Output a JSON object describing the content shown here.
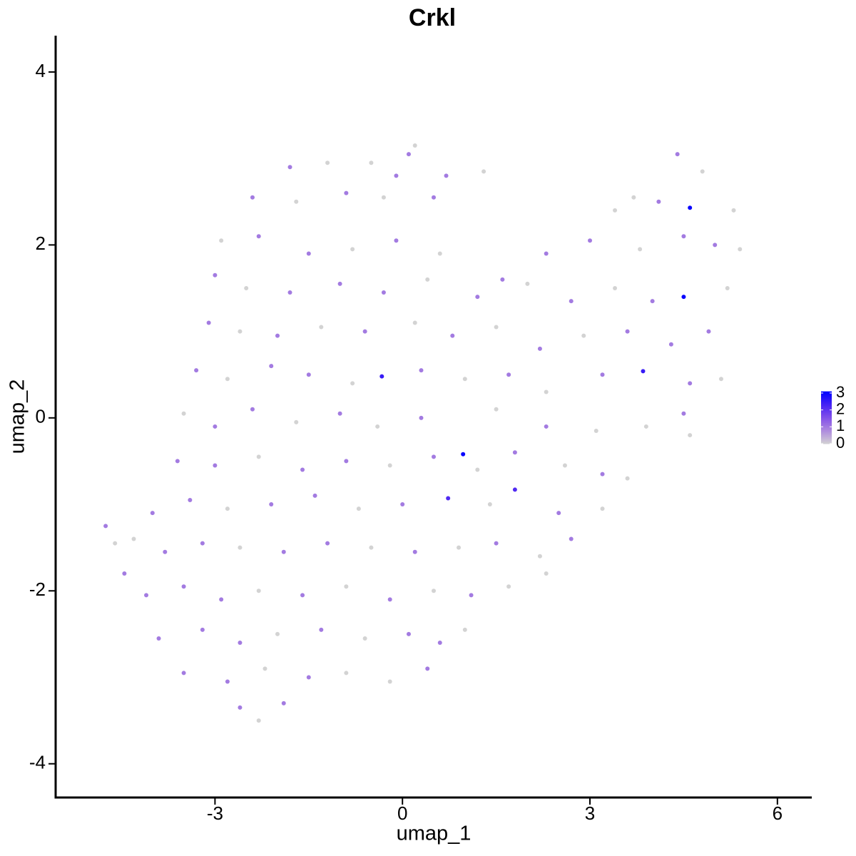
{
  "chart_data": {
    "type": "scatter",
    "title": "Crkl",
    "x_label": "umap_1",
    "y_label": "umap_2",
    "xlim": [
      -5.55,
      6.55
    ],
    "ylim": [
      -4.39,
      4.42
    ],
    "xticks": [
      -3,
      0,
      3,
      6
    ],
    "yticks": [
      -4,
      -2,
      0,
      2,
      4
    ],
    "low_color": "#d3d3d3",
    "high_color": "#0000ff",
    "legend_lim": [
      0,
      3.1
    ],
    "legend_ticks": [
      0,
      1,
      2,
      3
    ],
    "grid": false,
    "x": [
      -1.8,
      -1.2,
      -0.5,
      0.1,
      0.2,
      0.7,
      -0.1,
      4.4,
      4.8,
      -2.4,
      -1.7,
      -0.9,
      -0.3,
      0.5,
      1.3,
      3.4,
      4.1,
      4.6,
      5.3,
      3.7,
      -2.9,
      -2.3,
      -1.5,
      -0.8,
      -0.1,
      0.6,
      1.6,
      2.3,
      3.0,
      3.8,
      4.5,
      5.0,
      5.4,
      -3.0,
      -2.5,
      -1.8,
      -1.0,
      -0.3,
      0.4,
      1.2,
      2.0,
      2.7,
      3.4,
      4.0,
      4.5,
      5.2,
      -3.1,
      -2.6,
      -2.0,
      -1.3,
      -0.6,
      0.2,
      0.8,
      1.5,
      2.2,
      2.9,
      3.6,
      4.3,
      4.9,
      -3.3,
      -2.8,
      -2.1,
      -1.5,
      -0.8,
      -0.33,
      0.3,
      1.0,
      1.7,
      2.3,
      3.2,
      3.85,
      4.6,
      5.1,
      -3.5,
      -3.0,
      -2.4,
      -1.7,
      -1.0,
      -0.4,
      0.3,
      0.97,
      1.5,
      2.3,
      3.1,
      3.9,
      4.5,
      4.6,
      -3.6,
      -3.0,
      -2.3,
      -1.6,
      -0.9,
      -0.2,
      0.5,
      1.2,
      1.8,
      2.6,
      3.2,
      3.6,
      -4.0,
      -3.4,
      -2.8,
      -2.1,
      -1.4,
      -0.7,
      0.0,
      0.73,
      1.4,
      1.8,
      2.5,
      3.2,
      -4.3,
      -3.8,
      -3.2,
      -2.6,
      -1.9,
      -1.2,
      -0.5,
      0.2,
      0.9,
      1.5,
      2.2,
      2.7,
      -4.1,
      -3.5,
      -2.9,
      -2.3,
      -1.6,
      -0.9,
      -0.2,
      0.5,
      1.1,
      1.7,
      2.3,
      -3.9,
      -3.2,
      -2.6,
      -2.0,
      -1.3,
      -0.6,
      0.1,
      0.6,
      1.0,
      -3.5,
      -2.8,
      -2.2,
      -1.5,
      -0.9,
      -0.2,
      0.4,
      -2.6,
      -2.3,
      -1.9,
      -4.75,
      -4.6,
      -4.45
    ],
    "y": [
      2.9,
      2.95,
      2.95,
      3.05,
      3.15,
      2.8,
      2.8,
      3.05,
      2.85,
      2.55,
      2.5,
      2.6,
      2.55,
      2.55,
      2.85,
      2.4,
      2.5,
      2.43,
      2.4,
      2.55,
      2.05,
      2.1,
      1.9,
      1.95,
      2.05,
      1.9,
      1.6,
      1.9,
      2.05,
      1.95,
      2.1,
      2.0,
      1.95,
      1.65,
      1.5,
      1.45,
      1.55,
      1.45,
      1.6,
      1.4,
      1.55,
      1.35,
      1.5,
      1.35,
      1.4,
      1.5,
      1.1,
      1.0,
      0.95,
      1.05,
      1.0,
      1.1,
      0.95,
      1.05,
      0.8,
      0.95,
      1.0,
      0.85,
      1.0,
      0.55,
      0.45,
      0.6,
      0.5,
      0.4,
      0.48,
      0.55,
      0.45,
      0.5,
      0.3,
      0.5,
      0.54,
      0.4,
      0.45,
      0.05,
      -0.1,
      0.1,
      -0.05,
      0.05,
      -0.1,
      0.0,
      -0.42,
      0.1,
      -0.1,
      -0.15,
      -0.1,
      0.05,
      -0.2,
      -0.5,
      -0.55,
      -0.45,
      -0.6,
      -0.5,
      -0.55,
      -0.45,
      -0.6,
      -0.4,
      -0.55,
      -0.65,
      -0.7,
      -1.1,
      -0.95,
      -1.05,
      -1.0,
      -0.9,
      -1.05,
      -1.0,
      -0.93,
      -1.0,
      -0.83,
      -1.1,
      -1.05,
      -1.4,
      -1.55,
      -1.45,
      -1.5,
      -1.55,
      -1.45,
      -1.5,
      -1.55,
      -1.5,
      -1.45,
      -1.6,
      -1.4,
      -2.05,
      -1.95,
      -2.1,
      -2.0,
      -2.05,
      -1.95,
      -2.1,
      -2.0,
      -2.05,
      -1.95,
      -1.8,
      -2.55,
      -2.45,
      -2.6,
      -2.5,
      -2.45,
      -2.55,
      -2.5,
      -2.6,
      -2.45,
      -2.95,
      -3.05,
      -2.9,
      -3.0,
      -2.95,
      -3.05,
      -2.9,
      -3.35,
      -3.5,
      -3.3,
      -1.25,
      -1.45,
      -1.8
    ],
    "values": [
      1,
      0,
      0,
      1,
      0,
      1,
      1,
      1,
      0,
      1,
      0,
      1,
      0,
      1,
      0,
      0,
      1,
      3,
      0,
      0,
      0,
      1,
      1,
      0,
      1,
      0,
      1,
      1,
      1,
      0,
      1,
      1,
      0,
      1,
      0,
      1,
      1,
      1,
      0,
      1,
      0,
      1,
      0,
      1,
      3,
      0,
      1,
      0,
      1,
      0,
      1,
      0,
      1,
      0,
      1,
      0,
      1,
      1,
      1,
      1,
      0,
      1,
      1,
      0,
      2.5,
      1,
      0,
      1,
      0,
      1,
      2.5,
      1,
      0,
      0,
      1,
      1,
      0,
      1,
      0,
      1,
      3,
      0,
      1,
      0,
      0,
      1,
      0,
      1,
      1,
      0,
      1,
      1,
      0,
      1,
      0,
      1,
      0,
      1,
      0,
      1,
      1,
      0,
      1,
      1,
      0,
      1,
      2.2,
      0,
      2.2,
      1,
      0,
      0,
      1,
      1,
      0,
      1,
      1,
      0,
      1,
      0,
      1,
      0,
      1,
      1,
      1,
      1,
      0,
      1,
      0,
      1,
      0,
      1,
      0,
      0,
      1,
      1,
      1,
      0,
      1,
      0,
      1,
      1,
      0,
      1,
      1,
      0,
      1,
      0,
      0,
      1,
      1,
      0,
      1,
      1,
      0,
      1
    ]
  }
}
